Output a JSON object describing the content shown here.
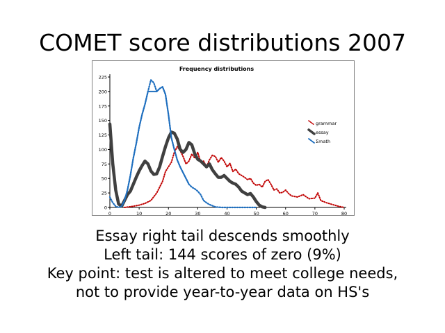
{
  "slide": {
    "title": "COMET score distributions 2007",
    "lines": [
      "Essay right tail descends smoothly",
      "Left tail: 144 scores of zero (9%)",
      "Key point: test is altered to meet college needs,",
      "not to provide year-to-year data on HS's"
    ]
  },
  "chart_data": {
    "type": "line",
    "title": "Frequency distributions",
    "xlabel": "",
    "ylabel": "",
    "xlim": [
      0,
      80
    ],
    "ylim": [
      0,
      225
    ],
    "x_ticks": [
      0,
      10,
      20,
      30,
      40,
      50,
      60,
      70,
      80
    ],
    "y_ticks": [
      0,
      25,
      50,
      75,
      100,
      125,
      150,
      175,
      200,
      225
    ],
    "grid": false,
    "legend_position": "right",
    "series": [
      {
        "name": "grammar",
        "color": "#c00000",
        "dash": "dotted",
        "points": [
          [
            5,
            0
          ],
          [
            8,
            2
          ],
          [
            10,
            4
          ],
          [
            12,
            7
          ],
          [
            14,
            12
          ],
          [
            16,
            25
          ],
          [
            18,
            45
          ],
          [
            19,
            62
          ],
          [
            20,
            70
          ],
          [
            21,
            78
          ],
          [
            22,
            95
          ],
          [
            23,
            105
          ],
          [
            24,
            98
          ],
          [
            25,
            88
          ],
          [
            26,
            75
          ],
          [
            27,
            80
          ],
          [
            28,
            92
          ],
          [
            29,
            85
          ],
          [
            30,
            95
          ],
          [
            31,
            78
          ],
          [
            32,
            80
          ],
          [
            33,
            70
          ],
          [
            34,
            82
          ],
          [
            35,
            90
          ],
          [
            36,
            88
          ],
          [
            37,
            78
          ],
          [
            38,
            86
          ],
          [
            39,
            80
          ],
          [
            40,
            70
          ],
          [
            41,
            76
          ],
          [
            42,
            62
          ],
          [
            43,
            66
          ],
          [
            44,
            58
          ],
          [
            45,
            55
          ],
          [
            46,
            52
          ],
          [
            47,
            48
          ],
          [
            48,
            50
          ],
          [
            49,
            42
          ],
          [
            50,
            38
          ],
          [
            51,
            40
          ],
          [
            52,
            35
          ],
          [
            53,
            45
          ],
          [
            54,
            48
          ],
          [
            55,
            40
          ],
          [
            56,
            30
          ],
          [
            57,
            32
          ],
          [
            58,
            25
          ],
          [
            59,
            26
          ],
          [
            60,
            30
          ],
          [
            61,
            24
          ],
          [
            62,
            20
          ],
          [
            64,
            18
          ],
          [
            66,
            22
          ],
          [
            68,
            15
          ],
          [
            70,
            16
          ],
          [
            71,
            25
          ],
          [
            72,
            12
          ],
          [
            74,
            8
          ],
          [
            76,
            5
          ],
          [
            78,
            2
          ],
          [
            80,
            0
          ]
        ]
      },
      {
        "name": "essay",
        "color": "#404040",
        "dash": "solid",
        "points": [
          [
            0,
            144
          ],
          [
            1,
            75
          ],
          [
            2,
            30
          ],
          [
            3,
            6
          ],
          [
            4,
            2
          ],
          [
            5,
            12
          ],
          [
            6,
            22
          ],
          [
            7,
            28
          ],
          [
            8,
            40
          ],
          [
            9,
            52
          ],
          [
            10,
            63
          ],
          [
            11,
            72
          ],
          [
            12,
            80
          ],
          [
            13,
            75
          ],
          [
            14,
            63
          ],
          [
            15,
            57
          ],
          [
            16,
            58
          ],
          [
            17,
            70
          ],
          [
            18,
            88
          ],
          [
            19,
            105
          ],
          [
            20,
            120
          ],
          [
            21,
            130
          ],
          [
            22,
            128
          ],
          [
            23,
            118
          ],
          [
            24,
            100
          ],
          [
            25,
            95
          ],
          [
            26,
            100
          ],
          [
            27,
            112
          ],
          [
            28,
            108
          ],
          [
            29,
            92
          ],
          [
            30,
            83
          ],
          [
            31,
            80
          ],
          [
            32,
            75
          ],
          [
            33,
            70
          ],
          [
            34,
            75
          ],
          [
            35,
            65
          ],
          [
            36,
            58
          ],
          [
            37,
            52
          ],
          [
            38,
            52
          ],
          [
            39,
            55
          ],
          [
            40,
            50
          ],
          [
            41,
            45
          ],
          [
            42,
            42
          ],
          [
            43,
            40
          ],
          [
            44,
            35
          ],
          [
            45,
            28
          ],
          [
            46,
            25
          ],
          [
            47,
            22
          ],
          [
            48,
            24
          ],
          [
            49,
            18
          ],
          [
            50,
            10
          ],
          [
            51,
            4
          ],
          [
            52,
            1
          ],
          [
            53,
            0
          ]
        ]
      },
      {
        "name": "Σmath",
        "color": "#1f6fbf",
        "dash": "mixed",
        "points": [
          [
            0,
            18
          ],
          [
            1,
            8
          ],
          [
            2,
            2
          ],
          [
            3,
            0
          ],
          [
            4,
            2
          ],
          [
            5,
            12
          ],
          [
            6,
            30
          ],
          [
            7,
            55
          ],
          [
            8,
            85
          ],
          [
            9,
            110
          ],
          [
            10,
            138
          ],
          [
            11,
            160
          ],
          [
            12,
            178
          ],
          [
            13,
            200
          ],
          [
            14,
            220
          ],
          [
            15,
            215
          ],
          [
            16,
            200
          ],
          [
            17,
            205
          ],
          [
            18,
            208
          ],
          [
            19,
            195
          ],
          [
            20,
            160
          ],
          [
            21,
            120
          ],
          [
            22,
            100
          ],
          [
            23,
            82
          ],
          [
            24,
            70
          ],
          [
            25,
            60
          ],
          [
            26,
            50
          ],
          [
            27,
            40
          ],
          [
            28,
            35
          ],
          [
            29,
            32
          ],
          [
            30,
            28
          ],
          [
            31,
            22
          ],
          [
            32,
            12
          ],
          [
            33,
            8
          ],
          [
            34,
            5
          ],
          [
            35,
            3
          ],
          [
            36,
            1
          ],
          [
            38,
            0
          ],
          [
            40,
            0
          ],
          [
            45,
            0
          ],
          [
            50,
            0
          ]
        ]
      }
    ]
  }
}
